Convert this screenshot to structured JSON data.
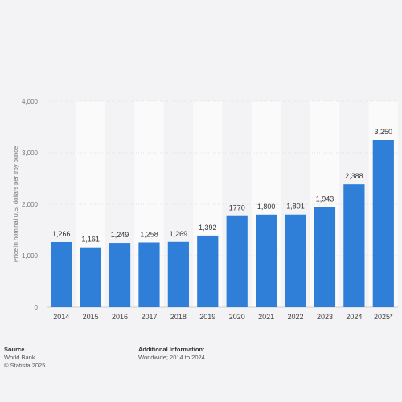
{
  "chart_data": {
    "type": "bar",
    "categories": [
      "2014",
      "2015",
      "2016",
      "2017",
      "2018",
      "2019",
      "2020",
      "2021",
      "2022",
      "2023",
      "2024",
      "2025*"
    ],
    "values": [
      1266,
      1161,
      1249,
      1258,
      1269,
      1392,
      1770,
      1800,
      1801,
      1943,
      2388,
      3250
    ],
    "value_labels": [
      "1,266",
      "1,161",
      "1,249",
      "1,258",
      "1,269",
      "1,392",
      "1770",
      "1,800",
      "1,801",
      "1,943",
      "2,388",
      "3,250"
    ],
    "ylabel": "Price in nominal U.S. dollars per troy ounce",
    "ylim": [
      0,
      4000
    ],
    "yticks": [
      0,
      1000,
      2000,
      3000,
      4000
    ],
    "ytick_labels": [
      "0",
      "1,000",
      "2,000",
      "3,000",
      "4,000"
    ],
    "bar_color": "#2f7ed8",
    "grid": true,
    "legend": "none"
  },
  "footer": {
    "source_title": "Source",
    "source_line1": "World Bank",
    "source_line2": "© Statista 2025",
    "info_title": "Additional Information:",
    "info_line1": "Worldwide; 2014 to 2024"
  }
}
